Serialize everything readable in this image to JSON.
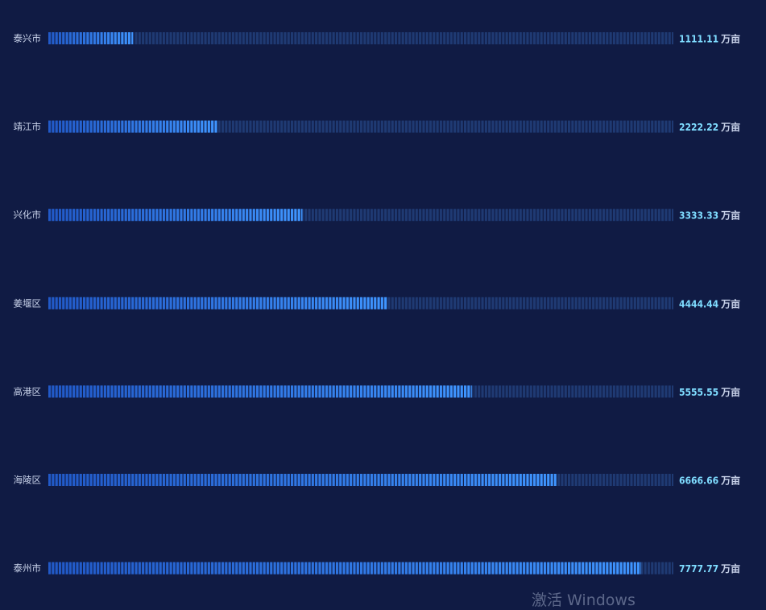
{
  "chart_data": {
    "type": "bar",
    "orientation": "horizontal",
    "categories": [
      "泰兴市",
      "靖江市",
      "兴化市",
      "姜堰区",
      "高港区",
      "海陵区",
      "泰州市"
    ],
    "values": [
      1111.11,
      2222.22,
      3333.33,
      4444.44,
      5555.55,
      6666.66,
      7777.77
    ],
    "value_labels": [
      "1111.11",
      "2222.22",
      "3333.33",
      "4444.44",
      "5555.55",
      "6666.66",
      "7777.77"
    ],
    "unit": "万亩",
    "xlim": [
      0,
      8200
    ],
    "grid": false,
    "legend": "none",
    "colors": {
      "background": "#101b44",
      "bar_fill_start": "#2159c8",
      "bar_fill_end": "#3f95ff",
      "bar_track": "#1f3a73",
      "value_text": "#7fdcff",
      "label_text": "#c9d3ea"
    }
  },
  "watermark": "激活 Windows"
}
